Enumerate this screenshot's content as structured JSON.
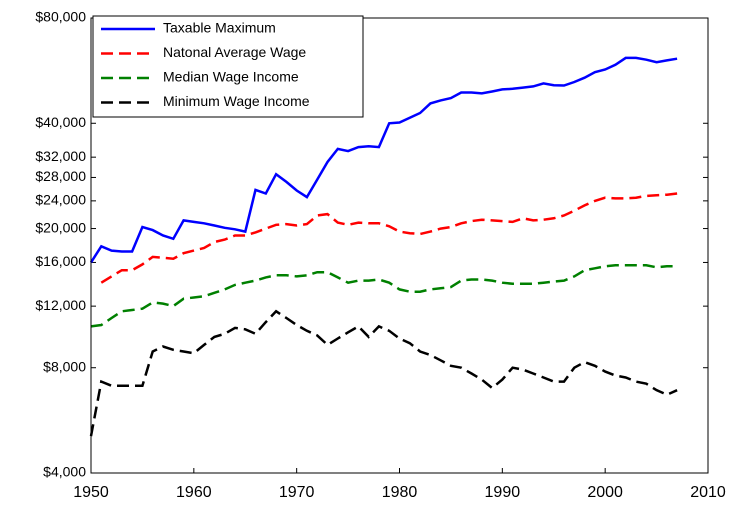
{
  "chart_data": {
    "type": "line",
    "log_scale_y": true,
    "legend_position": "upper-left",
    "x": [
      1950,
      1951,
      1952,
      1953,
      1954,
      1955,
      1956,
      1957,
      1958,
      1959,
      1960,
      1961,
      1962,
      1963,
      1964,
      1965,
      1966,
      1967,
      1968,
      1969,
      1970,
      1971,
      1972,
      1973,
      1974,
      1975,
      1976,
      1977,
      1978,
      1979,
      1980,
      1981,
      1982,
      1983,
      1984,
      1985,
      1986,
      1987,
      1988,
      1989,
      1990,
      1991,
      1992,
      1993,
      1994,
      1995,
      1996,
      1997,
      1998,
      1999,
      2000,
      2001,
      2002,
      2003,
      2004,
      2005,
      2006,
      2007
    ],
    "xlim": [
      1950,
      2010
    ],
    "xticks": [
      1950,
      1960,
      1970,
      1980,
      1990,
      2000,
      2010
    ],
    "ylim": [
      4000,
      80000
    ],
    "yticks": [
      {
        "value": 4000,
        "label": "$4,000"
      },
      {
        "value": 8000,
        "label": "$8,000"
      },
      {
        "value": 12000,
        "label": "$12,000"
      },
      {
        "value": 16000,
        "label": "$16,000"
      },
      {
        "value": 20000,
        "label": "$20,000"
      },
      {
        "value": 24000,
        "label": "$24,000"
      },
      {
        "value": 28000,
        "label": "$28,000"
      },
      {
        "value": 32000,
        "label": "$32,000"
      },
      {
        "value": 40000,
        "label": "$40,000"
      },
      {
        "value": 80000,
        "label": "$80,000"
      }
    ],
    "series": [
      {
        "name": "Taxable Maximum",
        "color": "#0000ff",
        "line_style": "solid",
        "values": [
          16000,
          17800,
          17300,
          17200,
          17200,
          20200,
          19800,
          19100,
          18700,
          21100,
          20900,
          20700,
          20400,
          20100,
          19900,
          19600,
          25800,
          25200,
          28600,
          27200,
          25700,
          24600,
          27600,
          31000,
          33800,
          33300,
          34200,
          34400,
          34200,
          40000,
          40200,
          41500,
          42800,
          45600,
          46500,
          47200,
          49000,
          49000,
          48700,
          49300,
          50000,
          50200,
          50600,
          51000,
          52000,
          51400,
          51300,
          52500,
          54000,
          56000,
          57000,
          58800,
          61500,
          61500,
          60800,
          59800,
          60500,
          61200
        ]
      },
      {
        "name": "Natonal Average Wage",
        "color": "#ff0000",
        "line_style": "dashed",
        "values": [
          null,
          14000,
          14600,
          15200,
          15200,
          15800,
          16600,
          16500,
          16400,
          17000,
          17300,
          17600,
          18300,
          18600,
          19100,
          19100,
          19500,
          20000,
          20500,
          20600,
          20400,
          20600,
          21800,
          22000,
          20800,
          20500,
          20800,
          20700,
          20700,
          20300,
          19600,
          19400,
          19300,
          19600,
          20000,
          20200,
          20700,
          21000,
          21200,
          21100,
          21000,
          20900,
          21400,
          21100,
          21200,
          21400,
          21800,
          22500,
          23300,
          24000,
          24500,
          24400,
          24400,
          24500,
          24800,
          24900,
          25000,
          25200
        ]
      },
      {
        "name": "Median Wage Income",
        "color": "#008000",
        "line_style": "dashed",
        "values": [
          10500,
          10600,
          11100,
          11600,
          11700,
          11800,
          12300,
          12200,
          12000,
          12600,
          12700,
          12800,
          13100,
          13400,
          13800,
          14000,
          14200,
          14500,
          14700,
          14700,
          14600,
          14700,
          15000,
          15000,
          14500,
          14000,
          14200,
          14200,
          14300,
          14000,
          13400,
          13200,
          13200,
          13400,
          13500,
          13600,
          14200,
          14300,
          14300,
          14200,
          14000,
          13900,
          13900,
          13900,
          14000,
          14100,
          14200,
          14600,
          15200,
          15400,
          15600,
          15700,
          15700,
          15700,
          15700,
          15500,
          15600,
          15600
        ]
      },
      {
        "name": "Minimum Wage Income",
        "color": "#000000",
        "line_style": "dashed",
        "values": [
          5100,
          7300,
          7100,
          7100,
          7100,
          7100,
          8900,
          9200,
          9000,
          8900,
          8800,
          9300,
          9800,
          10000,
          10400,
          10300,
          10000,
          10800,
          11600,
          11100,
          10600,
          10200,
          9900,
          9300,
          9700,
          10100,
          10500,
          9800,
          10500,
          10200,
          9700,
          9400,
          8900,
          8700,
          8400,
          8100,
          8000,
          7700,
          7400,
          7000,
          7400,
          8000,
          7900,
          7700,
          7500,
          7300,
          7300,
          8000,
          8300,
          8100,
          7800,
          7600,
          7500,
          7300,
          7200,
          6900,
          6700,
          6900
        ]
      }
    ]
  }
}
